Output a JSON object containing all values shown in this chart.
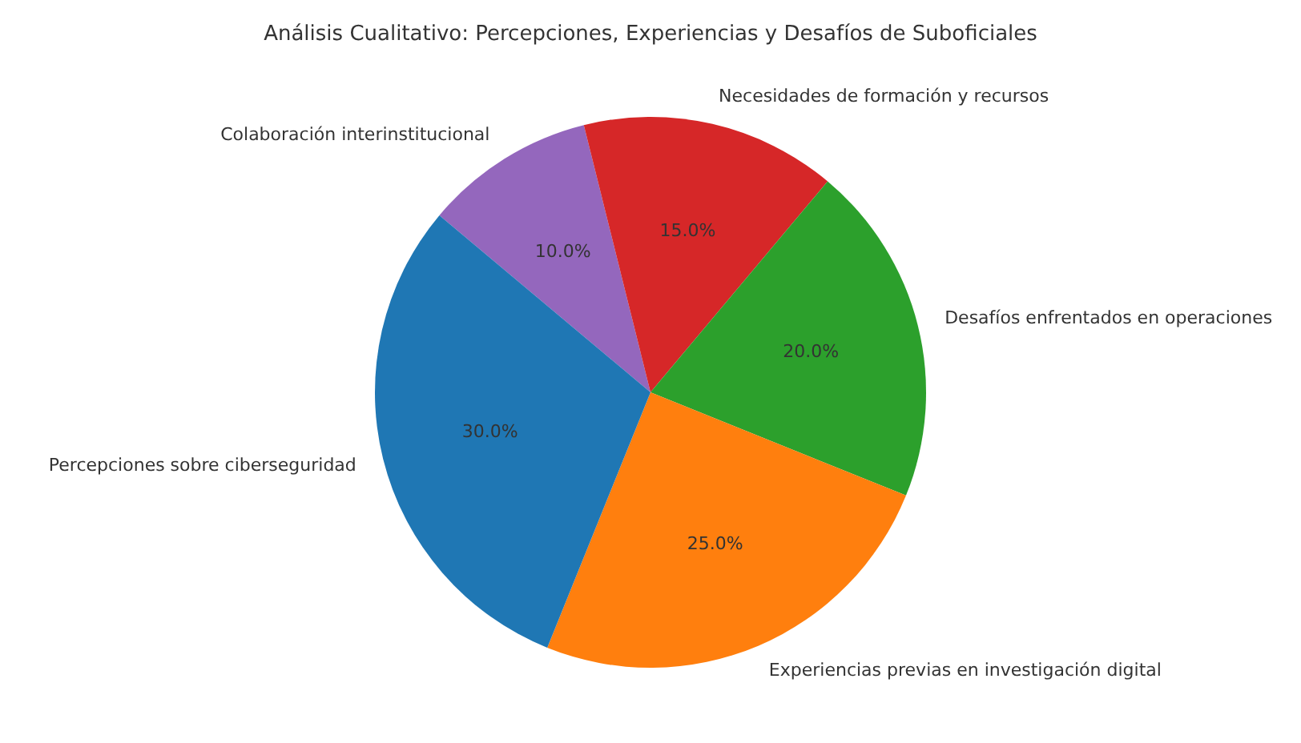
{
  "chart_data": {
    "type": "pie",
    "title": "Análisis Cualitativo: Percepciones, Experiencias y Desafíos de Suboficiales",
    "categories": [
      "Percepciones sobre ciberseguridad",
      "Experiencias previas en investigación digital",
      "Desafíos enfrentados en operaciones",
      "Necesidades de formación y recursos",
      "Colaboración interinstitucional"
    ],
    "values": [
      30,
      25,
      20,
      15,
      10
    ],
    "value_labels": [
      "30.0%",
      "25.0%",
      "20.0%",
      "15.0%",
      "10.0%"
    ],
    "colors": [
      "#1f77b4",
      "#ff7f0e",
      "#2ca02c",
      "#d62728",
      "#9467bd"
    ],
    "legend": false
  }
}
